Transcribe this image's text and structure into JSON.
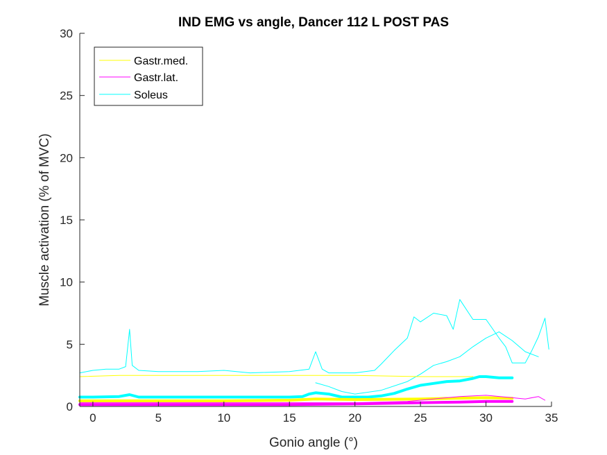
{
  "chart_data": {
    "type": "line",
    "title": "IND EMG vs angle, Dancer 112 L POST PAS",
    "xlabel": "Gonio angle (°)",
    "ylabel": "Muscle activation (% of MVC)",
    "xlim": [
      -1,
      35
    ],
    "ylim": [
      0,
      30
    ],
    "xticks": [
      0,
      5,
      10,
      15,
      20,
      25,
      30,
      35
    ],
    "yticks": [
      0,
      5,
      10,
      15,
      20,
      25,
      30
    ],
    "grid": false,
    "legend": {
      "placement": "top-left",
      "entries": [
        "Gastr.med.",
        "Gastr.lat.",
        "Soleus"
      ]
    },
    "series": [
      {
        "name": "Soleus",
        "kind": "raw",
        "color": "#00ffff",
        "x": [
          -1,
          0,
          1,
          2,
          2.5,
          2.8,
          3,
          3.5,
          5,
          8,
          10,
          12,
          15,
          16.5,
          17,
          17.5,
          18,
          20,
          21.5,
          22,
          23,
          24,
          24.5,
          25,
          26,
          27,
          27.5,
          28,
          29,
          30,
          31,
          31.5,
          32,
          33,
          33.5,
          34,
          34.5,
          34.8
        ],
        "y": [
          2.7,
          2.9,
          3.0,
          3.0,
          3.2,
          6.2,
          3.3,
          2.9,
          2.8,
          2.8,
          2.9,
          2.7,
          2.8,
          3.0,
          4.4,
          3.0,
          2.7,
          2.7,
          2.9,
          3.4,
          4.5,
          5.5,
          7.2,
          6.8,
          7.5,
          7.3,
          6.2,
          8.6,
          7.0,
          7.0,
          5.5,
          4.8,
          3.5,
          3.5,
          4.5,
          5.6,
          7.1,
          4.6
        ]
      },
      {
        "name": "Soleus",
        "kind": "raw",
        "color": "#00ffff",
        "x": [
          17,
          18,
          19,
          20,
          22,
          24,
          25,
          26,
          27,
          28,
          29,
          30,
          31,
          32,
          33,
          34
        ],
        "y": [
          1.9,
          1.6,
          1.2,
          1.0,
          1.3,
          2.0,
          2.6,
          3.3,
          3.6,
          4.0,
          4.8,
          5.5,
          6.0,
          5.3,
          4.4,
          4.0
        ]
      },
      {
        "name": "Soleus",
        "kind": "mean",
        "color": "#00ffff",
        "x": [
          -1,
          0,
          2,
          2.8,
          3.5,
          5,
          10,
          15,
          16,
          16.5,
          17,
          18,
          19,
          20,
          21,
          22,
          23,
          24,
          25,
          26,
          27,
          28,
          29,
          29.5,
          30,
          31,
          32
        ],
        "y": [
          0.75,
          0.75,
          0.8,
          0.95,
          0.75,
          0.75,
          0.75,
          0.75,
          0.8,
          1.0,
          1.1,
          1.0,
          0.75,
          0.75,
          0.75,
          0.85,
          1.05,
          1.4,
          1.7,
          1.85,
          2.0,
          2.05,
          2.25,
          2.4,
          2.4,
          2.3,
          2.3
        ]
      },
      {
        "name": "Gastr.med.",
        "kind": "raw",
        "color": "#ffff00",
        "x": [
          -1,
          2,
          5,
          10,
          15,
          20,
          25,
          29
        ],
        "y": [
          2.4,
          2.5,
          2.5,
          2.5,
          2.5,
          2.5,
          2.4,
          2.4
        ]
      },
      {
        "name": "Gastr.med.",
        "kind": "mean",
        "color": "#ffff00",
        "x": [
          -1,
          5,
          10,
          15,
          17,
          20,
          25,
          30,
          32
        ],
        "y": [
          0.45,
          0.45,
          0.45,
          0.5,
          0.6,
          0.55,
          0.6,
          0.7,
          0.65
        ]
      },
      {
        "name": "Gastr.lat.",
        "kind": "raw",
        "color": "#ff00ff",
        "x": [
          -1,
          5,
          10,
          15,
          20,
          24,
          26,
          28,
          30,
          32,
          33,
          34,
          34.5
        ],
        "y": [
          0.3,
          0.3,
          0.3,
          0.3,
          0.3,
          0.4,
          0.6,
          0.8,
          0.9,
          0.7,
          0.6,
          0.8,
          0.5
        ]
      },
      {
        "name": "Gastr.lat.",
        "kind": "mean",
        "color": "#ff00ff",
        "x": [
          -1,
          5,
          10,
          15,
          20,
          25,
          28,
          30,
          32
        ],
        "y": [
          0.15,
          0.15,
          0.15,
          0.15,
          0.2,
          0.3,
          0.35,
          0.4,
          0.4
        ]
      }
    ]
  }
}
